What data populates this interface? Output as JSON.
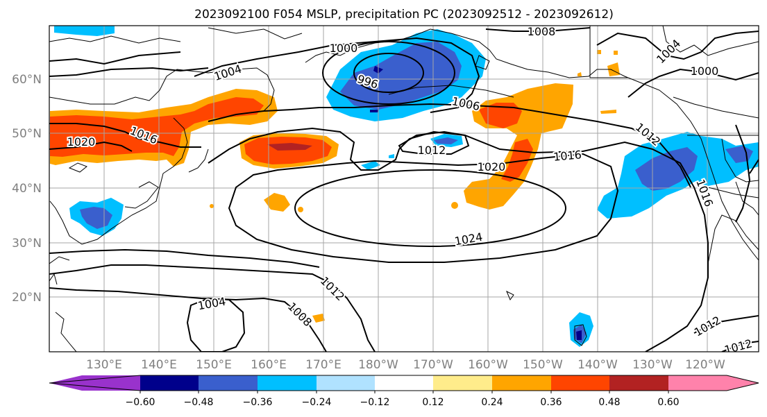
{
  "title": "2023092100 F054 MSLP, precipitation PC (2023092512 - 2023092612)",
  "lon_ticks": [
    "130°E",
    "140°E",
    "150°E",
    "160°E",
    "170°E",
    "180°W",
    "170°W",
    "160°W",
    "150°W",
    "140°W",
    "130°W",
    "120°W"
  ],
  "lat_ticks": [
    "60°N",
    "50°N",
    "40°N",
    "30°N",
    "20°N"
  ],
  "colorbar": {
    "ticks": [
      "−0.60",
      "−0.48",
      "−0.36",
      "−0.24",
      "−0.12",
      "0.12",
      "0.24",
      "0.36",
      "0.48",
      "0.60"
    ],
    "colors": [
      "#9932cc",
      "#00008b",
      "#3a5fcd",
      "#00bfff",
      "#b0e2ff",
      "#ffffff",
      "#ffec8b",
      "#ffa500",
      "#ff4500",
      "#b22222",
      "#ff82ab"
    ]
  },
  "isobar_labels": [
    "1008",
    "1000",
    "996",
    "1004",
    "1000",
    "1004",
    "1006",
    "1016",
    "1020",
    "1012",
    "1020",
    "1016",
    "1012",
    "1016",
    "1024",
    "1012",
    "1004",
    "1008",
    "1012",
    "1012"
  ],
  "map": {
    "region": "North Pacific",
    "field": "MSLP contours with precipitation PC shading"
  }
}
